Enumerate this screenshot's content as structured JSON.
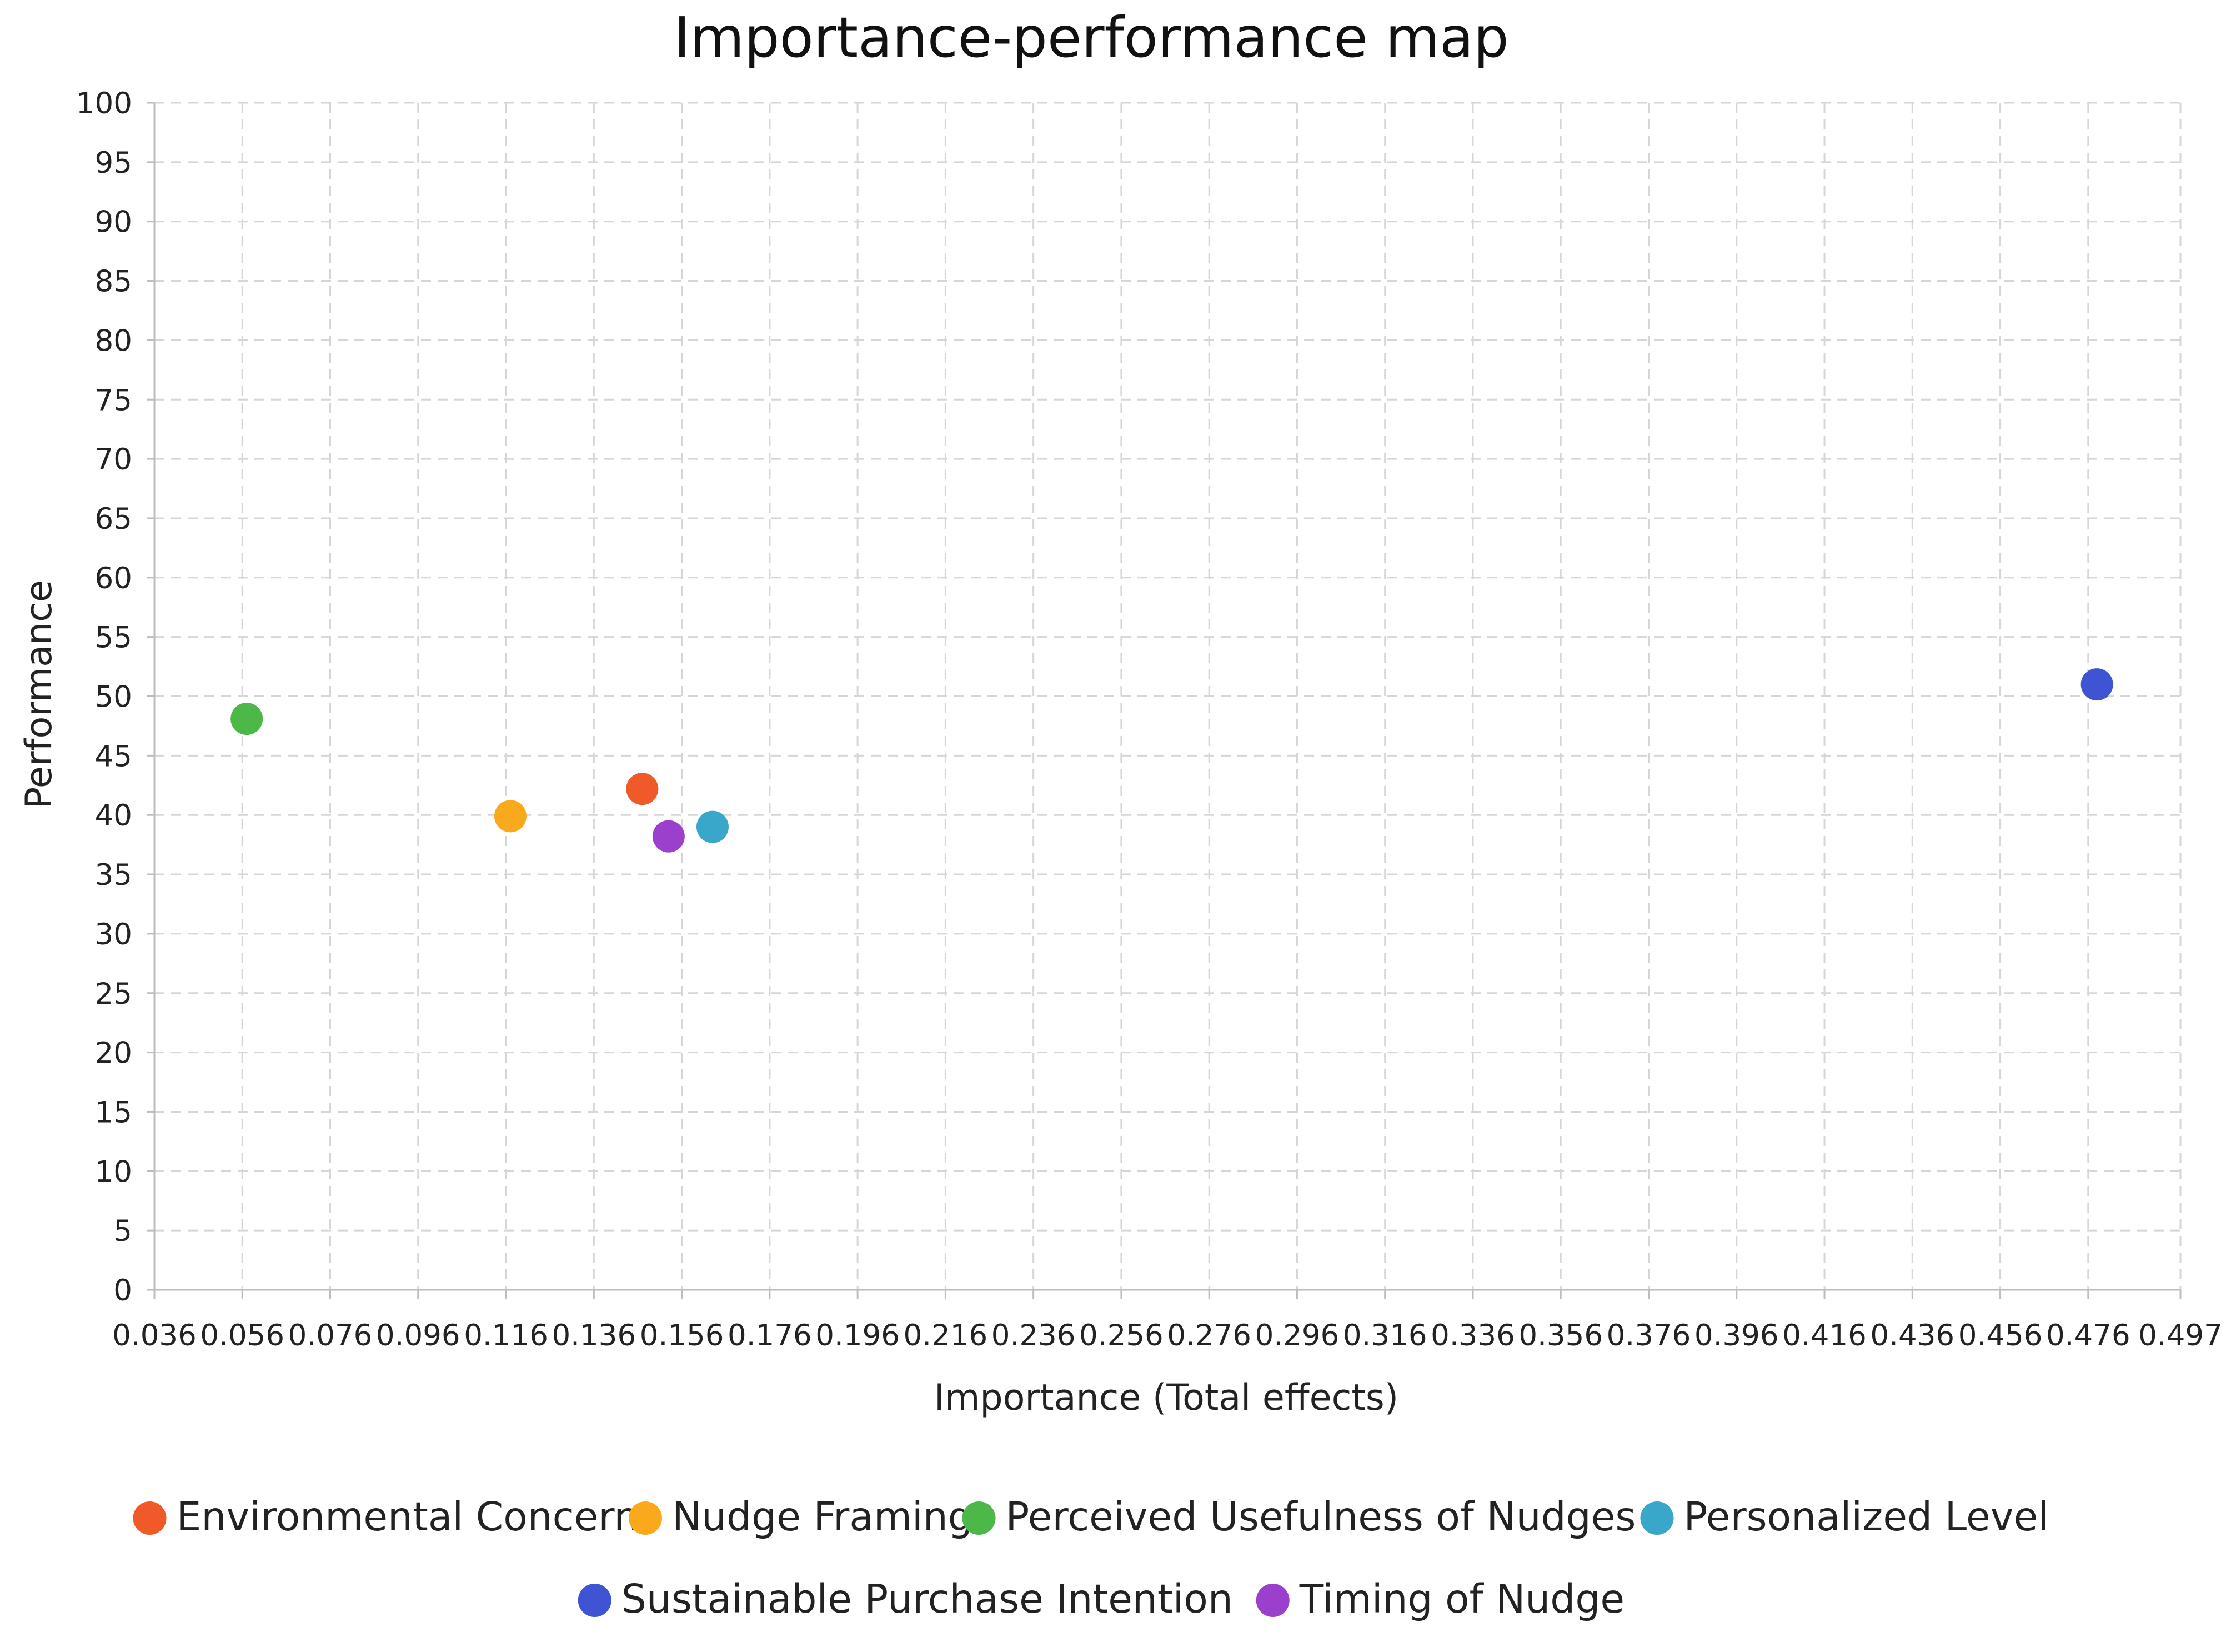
{
  "chart_data": {
    "type": "scatter",
    "title": "Importance-performance map",
    "xlabel": "Importance (Total effects)",
    "ylabel": "Performance",
    "xlim": [
      0.036,
      0.497
    ],
    "ylim": [
      0,
      100
    ],
    "x_ticks": [
      "0.036",
      "0.056",
      "0.076",
      "0.096",
      "0.116",
      "0.136",
      "0.156",
      "0.176",
      "0.196",
      "0.216",
      "0.236",
      "0.256",
      "0.276",
      "0.296",
      "0.316",
      "0.336",
      "0.356",
      "0.376",
      "0.396",
      "0.416",
      "0.436",
      "0.456",
      "0.476",
      "0.497"
    ],
    "y_ticks": [
      "0",
      "5",
      "10",
      "15",
      "20",
      "25",
      "30",
      "35",
      "40",
      "45",
      "50",
      "55",
      "60",
      "65",
      "70",
      "75",
      "80",
      "85",
      "90",
      "95",
      "100"
    ],
    "grid": true,
    "legend_position": "bottom",
    "series": [
      {
        "name": "Environmental Concern",
        "color": "#f05a28",
        "x": 0.147,
        "y": 42.2
      },
      {
        "name": "Nudge Framing",
        "color": "#f9a91b",
        "x": 0.117,
        "y": 39.9
      },
      {
        "name": "Perceived Usefulness of Nudges",
        "color": "#4cb848",
        "x": 0.057,
        "y": 48.1
      },
      {
        "name": "Personalized Level",
        "color": "#39a7c9",
        "x": 0.163,
        "y": 39.0
      },
      {
        "name": "Sustainable Purchase Intention",
        "color": "#3e54d3",
        "x": 0.478,
        "y": 51.0
      },
      {
        "name": "Timing of Nudge",
        "color": "#9b40cc",
        "x": 0.153,
        "y": 38.2
      }
    ]
  }
}
